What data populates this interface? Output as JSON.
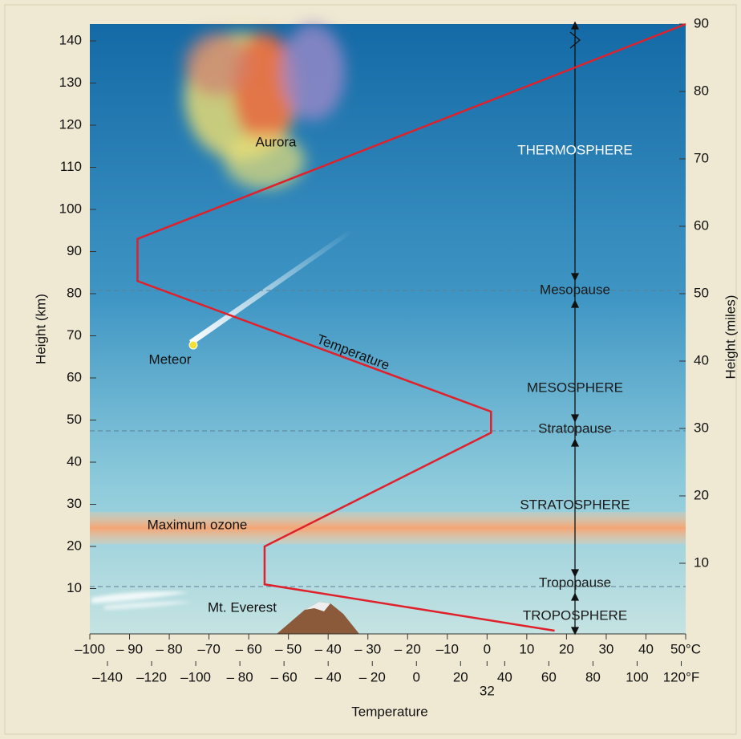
{
  "chart_data": {
    "type": "line",
    "x_label": "Temperature",
    "y_label": "Height (km)",
    "y2_label": "Height (miles)",
    "xlim": [
      -100,
      50
    ],
    "xticks": [
      {
        "value": -100,
        "label": "–100"
      },
      {
        "value": -90,
        "label": "– 90"
      },
      {
        "value": -80,
        "label": "– 80"
      },
      {
        "value": -70,
        "label": "–70"
      },
      {
        "value": -60,
        "label": "– 60"
      },
      {
        "value": -50,
        "label": "– 50"
      },
      {
        "value": -40,
        "label": "– 40"
      },
      {
        "value": -30,
        "label": "– 30"
      },
      {
        "value": -20,
        "label": "– 20"
      },
      {
        "value": -10,
        "label": "–10"
      },
      0,
      10,
      20,
      30,
      40,
      {
        "value": 50,
        "label": "50°C"
      }
    ],
    "x2lim": [
      -148,
      122
    ],
    "x2ticks": [
      {
        "value": -140,
        "label": "–140"
      },
      {
        "value": -120,
        "label": "–120"
      },
      {
        "value": -100,
        "label": "–100"
      },
      {
        "value": -80,
        "label": "– 80"
      },
      {
        "value": -60,
        "label": "– 60"
      },
      {
        "value": -40,
        "label": "– 40"
      },
      {
        "value": -20,
        "label": "– 20"
      },
      0,
      20,
      32,
      40,
      60,
      80,
      100,
      {
        "value": 120,
        "label": "120°F"
      }
    ],
    "ylim": [
      0,
      144
    ],
    "yticks": [
      10,
      20,
      30,
      40,
      50,
      60,
      70,
      80,
      90,
      100,
      110,
      120,
      130,
      140
    ],
    "y2lim": [
      0,
      90
    ],
    "y2ticks": [
      10,
      20,
      30,
      40,
      50,
      60,
      70,
      80,
      90
    ],
    "series": [
      {
        "name": "Temperature",
        "color": "#e0202a",
        "x": [
          17,
          -56,
          -56,
          1,
          1,
          -88,
          -88,
          50
        ],
        "values": [
          0,
          11,
          20,
          47,
          52,
          83,
          93,
          144
        ]
      }
    ],
    "layers": [
      "THERMOSPHERE",
      "Mesopause",
      "MESOSPHERE",
      "Stratopause",
      "STRATOSPHERE",
      "Tropopause",
      "TROPOSPHERE"
    ],
    "annotations": [
      "Aurora",
      "Meteor",
      "Maximum ozone",
      "Mt. Everest"
    ]
  }
}
